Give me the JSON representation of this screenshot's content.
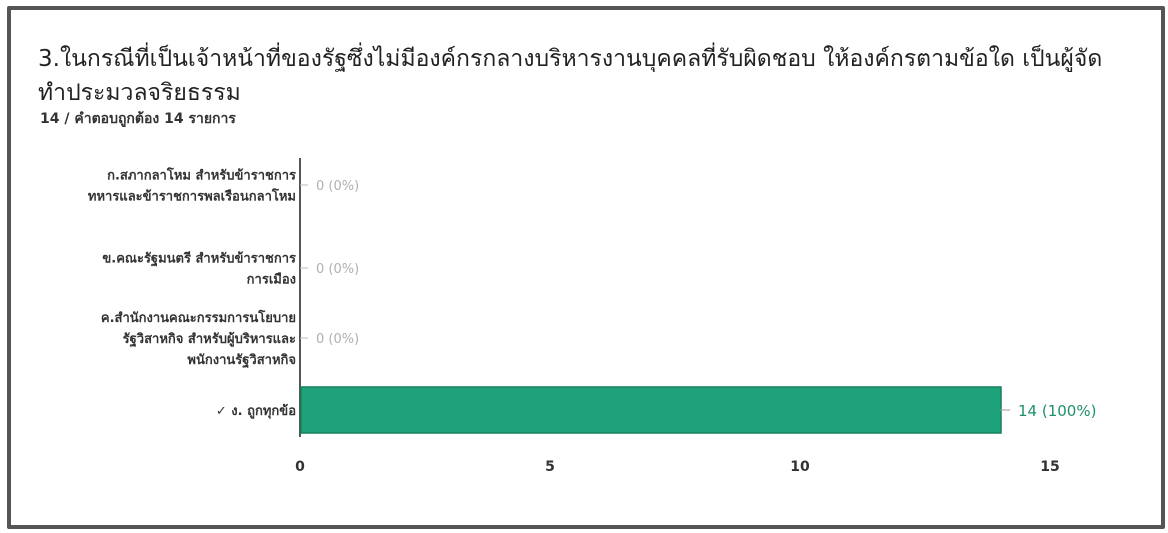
{
  "question": {
    "title": "3.ในกรณีที่เป็นเจ้าหน้าที่ของรัฐซึ่งไม่มีองค์กรกลางบริหารงานบุคคลที่รับผิดชอบ ให้องค์กรตามข้อใด เป็นผู้จัดทำประมวลจริยธรรม",
    "summary": "14 / คำตอบถูกต้อง 14 รายการ"
  },
  "colors": {
    "bar": "#1ea27a",
    "bar_stroke": "#16805f",
    "value_text": "#1f8f6c",
    "axis": "#555555"
  },
  "chart_data": {
    "type": "bar",
    "orientation": "horizontal",
    "categories": [
      [
        "ก.สภากลาโหม สำหรับข้าราชการ",
        "ทหารและข้าราชการพลเรือนกลาโหม"
      ],
      [
        "ข.คณะรัฐมนตรี สำหรับข้าราชการ",
        "การเมือง"
      ],
      [
        "ค.สำนักงานคณะกรรมการนโยบาย",
        "รัฐวิสาหกิจ สำหรับผู้บริหารและ",
        "พนักงานรัฐวิสาหกิจ"
      ],
      [
        "✓ ง. ถูกทุกข้อ"
      ]
    ],
    "values": [
      0,
      0,
      0,
      14
    ],
    "value_labels": [
      "0 (0%)",
      "0 (0%)",
      "0 (0%)",
      "14 (100%)"
    ],
    "xlim": [
      0,
      15
    ],
    "xticks": [
      "0",
      "5",
      "10",
      "15"
    ],
    "xtick_values": [
      0,
      5,
      10,
      15
    ],
    "grid": false,
    "legend": "none"
  }
}
